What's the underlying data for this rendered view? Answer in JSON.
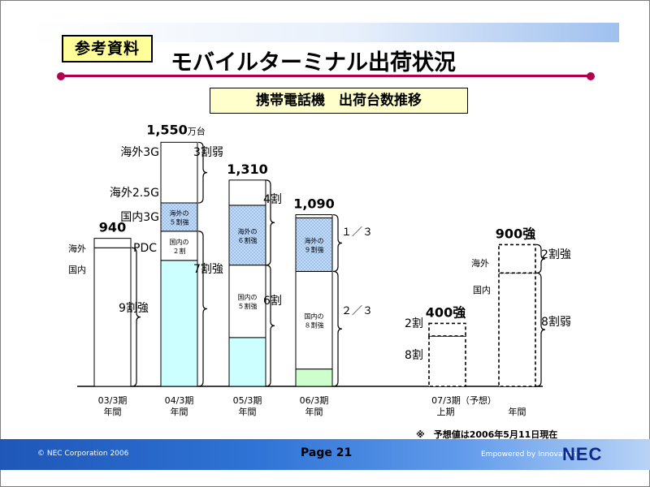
{
  "header": {
    "badge": "参考資料",
    "title": "モバイルターミナル出荷状況",
    "subtitle": "携帯電話機　出荷台数推移"
  },
  "note": "※　予想値は2006年5月11日現在",
  "footer": {
    "copyright": "© NEC Corporation 2006",
    "page": "Page 21",
    "tagline": "Empowered by Innovation",
    "logo": "NEC"
  },
  "colors": {
    "pdc": "#ffffff",
    "domestic_3g": "#ffffff",
    "overseas_2_5g": "#9ec3ee",
    "overseas_3g": "#ffffff",
    "domestic_fy03": "#ccffff",
    "domestic_fy06": "#ccffcc",
    "accent": "#b0004f"
  },
  "chart_data": {
    "type": "bar",
    "unit": "万台",
    "categories": [
      {
        "line1": "03/3期",
        "line2": "年間"
      },
      {
        "line1": "04/3期",
        "line2": "年間"
      },
      {
        "line1": "05/3期",
        "line2": "年間"
      },
      {
        "line1": "06/3期",
        "line2": "年間"
      },
      {
        "line1": "07/3期（予想）",
        "line2": "上期"
      },
      {
        "line1": "",
        "line2": "年間"
      }
    ],
    "totals": [
      "940",
      "1,550",
      "1,310",
      "1,090",
      "400強",
      "900強"
    ],
    "total_unit_suffix": "万台",
    "bars": [
      {
        "total": 940,
        "forecast": false,
        "segments": [
          {
            "key": "domestic",
            "value": 880,
            "color": "#ffffff"
          },
          {
            "key": "overseas",
            "value": 60,
            "color": "#ffffff"
          }
        ]
      },
      {
        "total": 1550,
        "forecast": false,
        "segments": [
          {
            "key": "domestic_pdc",
            "value": 800,
            "color": "#ccffff"
          },
          {
            "key": "domestic_3g",
            "value": 185,
            "color": "#ffffff",
            "label": [
              "国内の",
              "２割"
            ]
          },
          {
            "key": "overseas_2_5g",
            "value": 180,
            "color": "#9ec3ee",
            "dotted": true,
            "label": [
              "海外の",
              "５割強"
            ]
          },
          {
            "key": "overseas_3g",
            "value": 385,
            "color": "#ffffff"
          }
        ]
      },
      {
        "total": 1310,
        "forecast": false,
        "segments": [
          {
            "key": "domestic_pdc",
            "value": 310,
            "color": "#ccffff"
          },
          {
            "key": "domestic_3g",
            "value": 460,
            "color": "#ffffff",
            "label": [
              "国内の",
              "５割強"
            ]
          },
          {
            "key": "overseas_2_5g",
            "value": 380,
            "color": "#9ec3ee",
            "dotted": true,
            "label": [
              "海外の",
              "６割強"
            ]
          },
          {
            "key": "overseas_3g",
            "value": 160,
            "color": "#ffffff"
          }
        ]
      },
      {
        "total": 1090,
        "forecast": false,
        "segments": [
          {
            "key": "domestic_pdc",
            "value": 110,
            "color": "#ccffcc"
          },
          {
            "key": "domestic_3g",
            "value": 620,
            "color": "#ffffff",
            "label": [
              "国内の",
              "８割強"
            ]
          },
          {
            "key": "overseas_2_5g",
            "value": 340,
            "color": "#9ec3ee",
            "dotted": true,
            "label": [
              "海外の",
              "９割強"
            ]
          },
          {
            "key": "overseas_3g",
            "value": 20,
            "color": "#ffffff"
          }
        ]
      },
      {
        "total": 400,
        "forecast": true,
        "segments": [
          {
            "key": "domestic",
            "value": 320,
            "color": "#ffffff"
          },
          {
            "key": "overseas",
            "value": 80,
            "color": "#ffffff"
          }
        ]
      },
      {
        "total": 900,
        "forecast": true,
        "segments": [
          {
            "key": "domestic",
            "value": 720,
            "color": "#ffffff"
          },
          {
            "key": "overseas",
            "value": 180,
            "color": "#ffffff"
          }
        ]
      }
    ],
    "left_labels": [
      "海外",
      "国内",
      "海外3G",
      "海外2.5G",
      "国内3G",
      "PDC",
      "海外",
      "国内"
    ],
    "share_labels": [
      "9割強",
      "3割弱",
      "7割強",
      "4割",
      "6割",
      "１／３",
      "２／３",
      "2割",
      "8割",
      "2割強",
      "8割弱"
    ]
  }
}
